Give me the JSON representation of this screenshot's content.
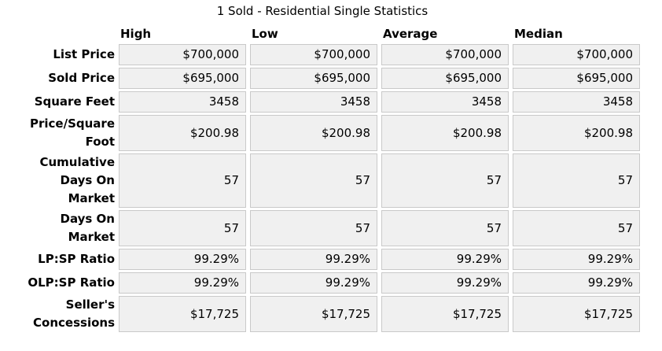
{
  "chart_data": {
    "type": "table",
    "title": "1 Sold - Residential Single Statistics",
    "columns": [
      "High",
      "Low",
      "Average",
      "Median"
    ],
    "rows": [
      {
        "label": "List Price",
        "values": [
          "$700,000",
          "$700,000",
          "$700,000",
          "$700,000"
        ]
      },
      {
        "label": "Sold Price",
        "values": [
          "$695,000",
          "$695,000",
          "$695,000",
          "$695,000"
        ]
      },
      {
        "label": "Square Feet",
        "values": [
          "3458",
          "3458",
          "3458",
          "3458"
        ]
      },
      {
        "label": "Price/Square\nFoot",
        "values": [
          "$200.98",
          "$200.98",
          "$200.98",
          "$200.98"
        ]
      },
      {
        "label": "Cumulative\nDays On\nMarket",
        "values": [
          "57",
          "57",
          "57",
          "57"
        ]
      },
      {
        "label": "Days On\nMarket",
        "values": [
          "57",
          "57",
          "57",
          "57"
        ]
      },
      {
        "label": "LP:SP Ratio",
        "values": [
          "99.29%",
          "99.29%",
          "99.29%",
          "99.29%"
        ]
      },
      {
        "label": "OLP:SP Ratio",
        "values": [
          "99.29%",
          "99.29%",
          "99.29%",
          "99.29%"
        ]
      },
      {
        "label": "Seller's\nConcessions",
        "values": [
          "$17,725",
          "$17,725",
          "$17,725",
          "$17,725"
        ]
      }
    ]
  },
  "colors": {
    "cell_background": "#f0f0f0",
    "cell_border": "#c9c9c9",
    "text": "#000000",
    "page_background": "#ffffff"
  }
}
